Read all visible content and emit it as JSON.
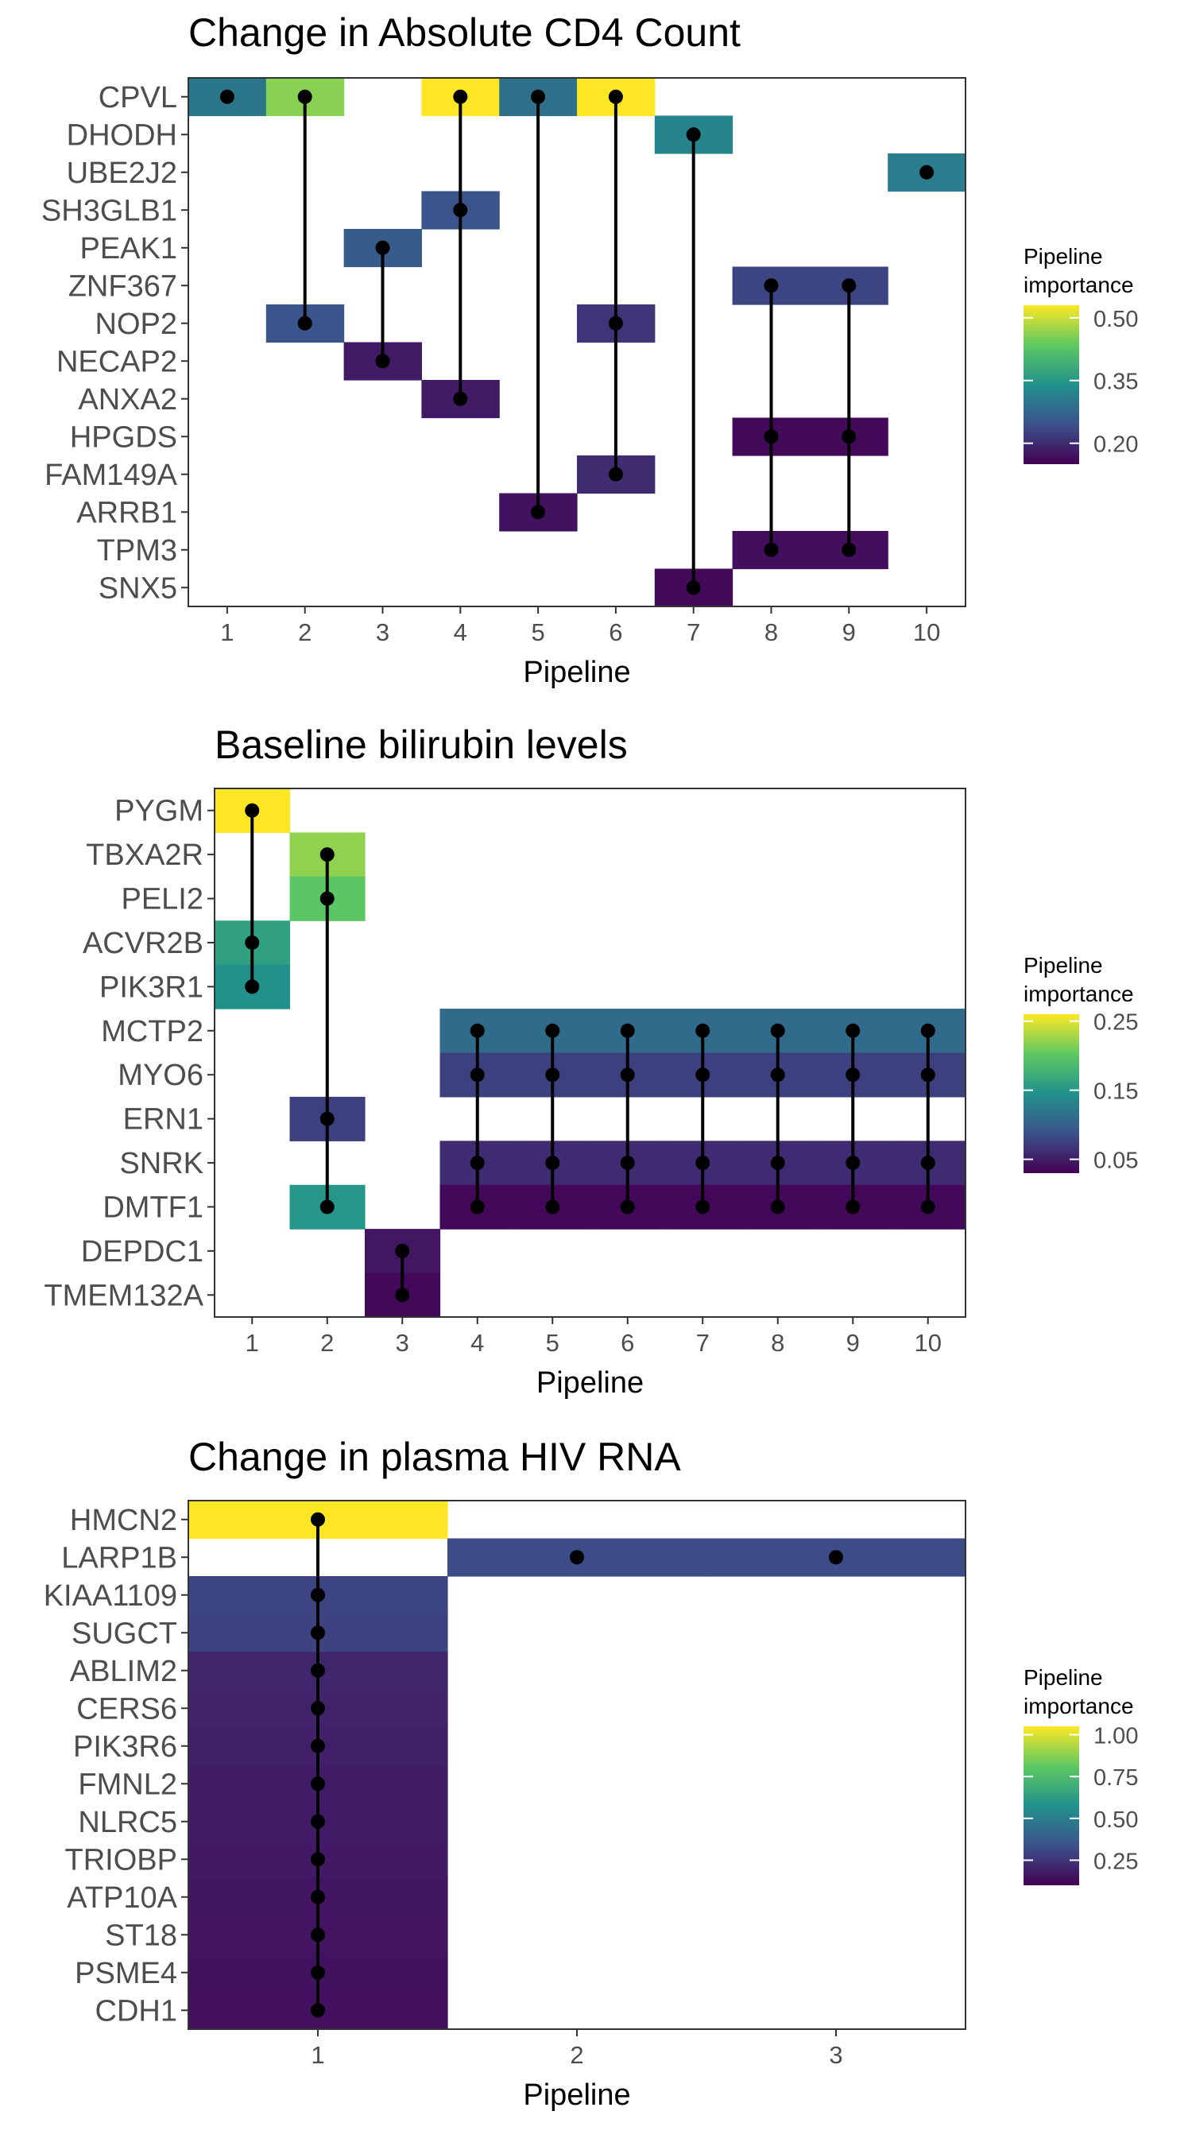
{
  "chart_data": [
    {
      "type": "heatmap",
      "title": "Change in Absolute CD4 Count",
      "xlabel": "Pipeline",
      "ylabel": "",
      "x": [
        1,
        2,
        3,
        4,
        5,
        6,
        7,
        8,
        9,
        10
      ],
      "rows": [
        "CPVL",
        "DHODH",
        "UBE2J2",
        "SH3GLB1",
        "PEAK1",
        "ZNF367",
        "NOP2",
        "NECAP2",
        "ANXA2",
        "HPGDS",
        "FAM149A",
        "ARRB1",
        "TPM3",
        "SNX5"
      ],
      "legend": {
        "title_line1": "Pipeline",
        "title_line2": "importance",
        "min": 0.15,
        "max": 0.53,
        "ticks": [
          0.5,
          0.35,
          0.2
        ],
        "tick_labels": [
          "0.50",
          "0.35",
          "0.20"
        ]
      },
      "cells": [
        {
          "row": "CPVL",
          "pipeline": 1,
          "value": 0.3
        },
        {
          "row": "CPVL",
          "pipeline": 2,
          "value": 0.46
        },
        {
          "row": "CPVL",
          "pipeline": 4,
          "value": 0.53
        },
        {
          "row": "CPVL",
          "pipeline": 5,
          "value": 0.29
        },
        {
          "row": "CPVL",
          "pipeline": 6,
          "value": 0.53
        },
        {
          "row": "DHODH",
          "pipeline": 7,
          "value": 0.32
        },
        {
          "row": "UBE2J2",
          "pipeline": 10,
          "value": 0.31
        },
        {
          "row": "SH3GLB1",
          "pipeline": 4,
          "value": 0.25
        },
        {
          "row": "PEAK1",
          "pipeline": 3,
          "value": 0.26
        },
        {
          "row": "ZNF367",
          "pipeline": 8,
          "value": 0.23
        },
        {
          "row": "ZNF367",
          "pipeline": 9,
          "value": 0.23
        },
        {
          "row": "NOP2",
          "pipeline": 2,
          "value": 0.25
        },
        {
          "row": "NOP2",
          "pipeline": 6,
          "value": 0.21
        },
        {
          "row": "NECAP2",
          "pipeline": 3,
          "value": 0.18
        },
        {
          "row": "ANXA2",
          "pipeline": 4,
          "value": 0.18
        },
        {
          "row": "HPGDS",
          "pipeline": 8,
          "value": 0.16
        },
        {
          "row": "HPGDS",
          "pipeline": 9,
          "value": 0.16
        },
        {
          "row": "FAM149A",
          "pipeline": 6,
          "value": 0.2
        },
        {
          "row": "ARRB1",
          "pipeline": 5,
          "value": 0.17
        },
        {
          "row": "TPM3",
          "pipeline": 8,
          "value": 0.165
        },
        {
          "row": "TPM3",
          "pipeline": 9,
          "value": 0.165
        },
        {
          "row": "SNX5",
          "pipeline": 7,
          "value": 0.16
        }
      ]
    },
    {
      "type": "heatmap",
      "title": "Baseline bilirubin levels",
      "xlabel": "Pipeline",
      "ylabel": "",
      "x": [
        1,
        2,
        3,
        4,
        5,
        6,
        7,
        8,
        9,
        10
      ],
      "rows": [
        "PYGM",
        "TBXA2R",
        "PELI2",
        "ACVR2B",
        "PIK3R1",
        "MCTP2",
        "MYO6",
        "ERN1",
        "SNRK",
        "DMTF1",
        "DEPDC1",
        "TMEM132A"
      ],
      "legend": {
        "title_line1": "Pipeline",
        "title_line2": "importance",
        "min": 0.03,
        "max": 0.26,
        "ticks": [
          0.25,
          0.15,
          0.05
        ],
        "tick_labels": [
          "0.25",
          "0.15",
          "0.05"
        ]
      },
      "cells": [
        {
          "row": "PYGM",
          "pipeline": 1,
          "value": 0.26
        },
        {
          "row": "TBXA2R",
          "pipeline": 2,
          "value": 0.22
        },
        {
          "row": "PELI2",
          "pipeline": 2,
          "value": 0.2
        },
        {
          "row": "ACVR2B",
          "pipeline": 1,
          "value": 0.16
        },
        {
          "row": "PIK3R1",
          "pipeline": 1,
          "value": 0.145
        },
        {
          "row": "MCTP2",
          "pipeline": 4,
          "value": 0.11
        },
        {
          "row": "MCTP2",
          "pipeline": 5,
          "value": 0.11
        },
        {
          "row": "MCTP2",
          "pipeline": 6,
          "value": 0.11
        },
        {
          "row": "MCTP2",
          "pipeline": 7,
          "value": 0.11
        },
        {
          "row": "MCTP2",
          "pipeline": 8,
          "value": 0.11
        },
        {
          "row": "MCTP2",
          "pipeline": 9,
          "value": 0.11
        },
        {
          "row": "MCTP2",
          "pipeline": 10,
          "value": 0.11
        },
        {
          "row": "MYO6",
          "pipeline": 4,
          "value": 0.075
        },
        {
          "row": "MYO6",
          "pipeline": 5,
          "value": 0.075
        },
        {
          "row": "MYO6",
          "pipeline": 6,
          "value": 0.075
        },
        {
          "row": "MYO6",
          "pipeline": 7,
          "value": 0.075
        },
        {
          "row": "MYO6",
          "pipeline": 8,
          "value": 0.075
        },
        {
          "row": "MYO6",
          "pipeline": 9,
          "value": 0.075
        },
        {
          "row": "MYO6",
          "pipeline": 10,
          "value": 0.075
        },
        {
          "row": "ERN1",
          "pipeline": 2,
          "value": 0.075
        },
        {
          "row": "SNRK",
          "pipeline": 4,
          "value": 0.06
        },
        {
          "row": "SNRK",
          "pipeline": 5,
          "value": 0.06
        },
        {
          "row": "SNRK",
          "pipeline": 6,
          "value": 0.06
        },
        {
          "row": "SNRK",
          "pipeline": 7,
          "value": 0.06
        },
        {
          "row": "SNRK",
          "pipeline": 8,
          "value": 0.06
        },
        {
          "row": "SNRK",
          "pipeline": 9,
          "value": 0.06
        },
        {
          "row": "SNRK",
          "pipeline": 10,
          "value": 0.06
        },
        {
          "row": "DMTF1",
          "pipeline": 2,
          "value": 0.15
        },
        {
          "row": "DMTF1",
          "pipeline": 4,
          "value": 0.035
        },
        {
          "row": "DMTF1",
          "pipeline": 5,
          "value": 0.035
        },
        {
          "row": "DMTF1",
          "pipeline": 6,
          "value": 0.035
        },
        {
          "row": "DMTF1",
          "pipeline": 7,
          "value": 0.035
        },
        {
          "row": "DMTF1",
          "pipeline": 8,
          "value": 0.035
        },
        {
          "row": "DMTF1",
          "pipeline": 9,
          "value": 0.035
        },
        {
          "row": "DMTF1",
          "pipeline": 10,
          "value": 0.035
        },
        {
          "row": "DEPDC1",
          "pipeline": 3,
          "value": 0.045
        },
        {
          "row": "TMEM132A",
          "pipeline": 3,
          "value": 0.035
        }
      ]
    },
    {
      "type": "heatmap",
      "title": "Change in plasma HIV RNA",
      "xlabel": "Pipeline",
      "ylabel": "",
      "x": [
        1,
        2,
        3
      ],
      "rows": [
        "HMCN2",
        "LARP1B",
        "KIAA1109",
        "SUGCT",
        "ABLIM2",
        "CERS6",
        "PIK3R6",
        "FMNL2",
        "NLRC5",
        "TRIOBP",
        "ATP10A",
        "ST18",
        "PSME4",
        "CDH1"
      ],
      "legend": {
        "title_line1": "Pipeline",
        "title_line2": "importance",
        "min": 0.1,
        "max": 1.05,
        "ticks": [
          1.0,
          0.75,
          0.5,
          0.25
        ],
        "tick_labels": [
          "1.00",
          "0.75",
          "0.50",
          "0.25"
        ]
      },
      "cells": [
        {
          "row": "HMCN2",
          "pipeline": 1,
          "value": 1.05
        },
        {
          "row": "LARP1B",
          "pipeline": 2,
          "value": 0.32
        },
        {
          "row": "LARP1B",
          "pipeline": 3,
          "value": 0.32
        },
        {
          "row": "KIAA1109",
          "pipeline": 1,
          "value": 0.3
        },
        {
          "row": "SUGCT",
          "pipeline": 1,
          "value": 0.29
        },
        {
          "row": "ABLIM2",
          "pipeline": 1,
          "value": 0.21
        },
        {
          "row": "CERS6",
          "pipeline": 1,
          "value": 0.2
        },
        {
          "row": "PIK3R6",
          "pipeline": 1,
          "value": 0.19
        },
        {
          "row": "FMNL2",
          "pipeline": 1,
          "value": 0.18
        },
        {
          "row": "NLRC5",
          "pipeline": 1,
          "value": 0.175
        },
        {
          "row": "TRIOBP",
          "pipeline": 1,
          "value": 0.17
        },
        {
          "row": "ATP10A",
          "pipeline": 1,
          "value": 0.16
        },
        {
          "row": "ST18",
          "pipeline": 1,
          "value": 0.155
        },
        {
          "row": "PSME4",
          "pipeline": 1,
          "value": 0.15
        },
        {
          "row": "CDH1",
          "pipeline": 1,
          "value": 0.145
        }
      ]
    }
  ]
}
